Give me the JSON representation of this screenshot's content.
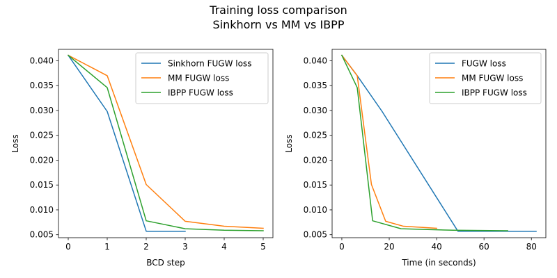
{
  "figure": {
    "title_line1": "Training loss comparison",
    "title_line2": "Sinkhorn vs MM vs IBPP"
  },
  "chart_data": [
    {
      "type": "line",
      "title": "",
      "xlabel": "BCD step",
      "ylabel": "Loss",
      "xlim": [
        -0.25,
        5.25
      ],
      "ylim": [
        0.0044,
        0.0423
      ],
      "xticks": [
        0,
        1,
        2,
        3,
        4,
        5
      ],
      "yticks": [
        0.005,
        0.01,
        0.015,
        0.02,
        0.025,
        0.03,
        0.035,
        0.04
      ],
      "ytick_labels": [
        "0.005",
        "0.010",
        "0.015",
        "0.020",
        "0.025",
        "0.030",
        "0.035",
        "0.040"
      ],
      "grid": false,
      "legend": "top-right",
      "series": [
        {
          "name": "Sinkhorn FUGW loss",
          "color": "#1f77b4",
          "x": [
            0,
            1,
            2,
            3
          ],
          "y": [
            0.0411,
            0.0298,
            0.0057,
            0.0057
          ]
        },
        {
          "name": "MM FUGW loss",
          "color": "#ff7f0e",
          "x": [
            0,
            1,
            2,
            3,
            4,
            5
          ],
          "y": [
            0.0411,
            0.037,
            0.0151,
            0.0077,
            0.0067,
            0.0063
          ]
        },
        {
          "name": "IBPP FUGW loss",
          "color": "#2ca02c",
          "x": [
            0,
            1,
            2,
            3,
            4,
            5
          ],
          "y": [
            0.0411,
            0.0346,
            0.0078,
            0.0062,
            0.0059,
            0.0058
          ]
        }
      ]
    },
    {
      "type": "line",
      "title": "",
      "xlabel": "Time (in seconds)",
      "ylabel": "Loss",
      "xlim": [
        -4.1,
        86.1
      ],
      "ylim": [
        0.0044,
        0.0423
      ],
      "xticks": [
        0,
        20,
        40,
        60,
        80
      ],
      "yticks": [
        0.005,
        0.01,
        0.015,
        0.02,
        0.025,
        0.03,
        0.035,
        0.04
      ],
      "ytick_labels": [
        "0.005",
        "0.010",
        "0.015",
        "0.020",
        "0.025",
        "0.030",
        "0.035",
        "0.040"
      ],
      "grid": false,
      "legend": "top-right",
      "series": [
        {
          "name": "FUGW loss",
          "color": "#1f77b4",
          "x": [
            0,
            6.5,
            17,
            49,
            82
          ],
          "y": [
            0.0411,
            0.037,
            0.0298,
            0.0057,
            0.0057
          ]
        },
        {
          "name": "MM FUGW loss",
          "color": "#ff7f0e",
          "x": [
            0,
            6.5,
            12.5,
            18.5,
            26,
            40
          ],
          "y": [
            0.0411,
            0.037,
            0.0151,
            0.0077,
            0.0067,
            0.0063
          ]
        },
        {
          "name": "IBPP FUGW loss",
          "color": "#2ca02c",
          "x": [
            0,
            6.5,
            13,
            25,
            47,
            70
          ],
          "y": [
            0.0411,
            0.0346,
            0.0078,
            0.0062,
            0.0059,
            0.0058
          ]
        }
      ]
    }
  ]
}
